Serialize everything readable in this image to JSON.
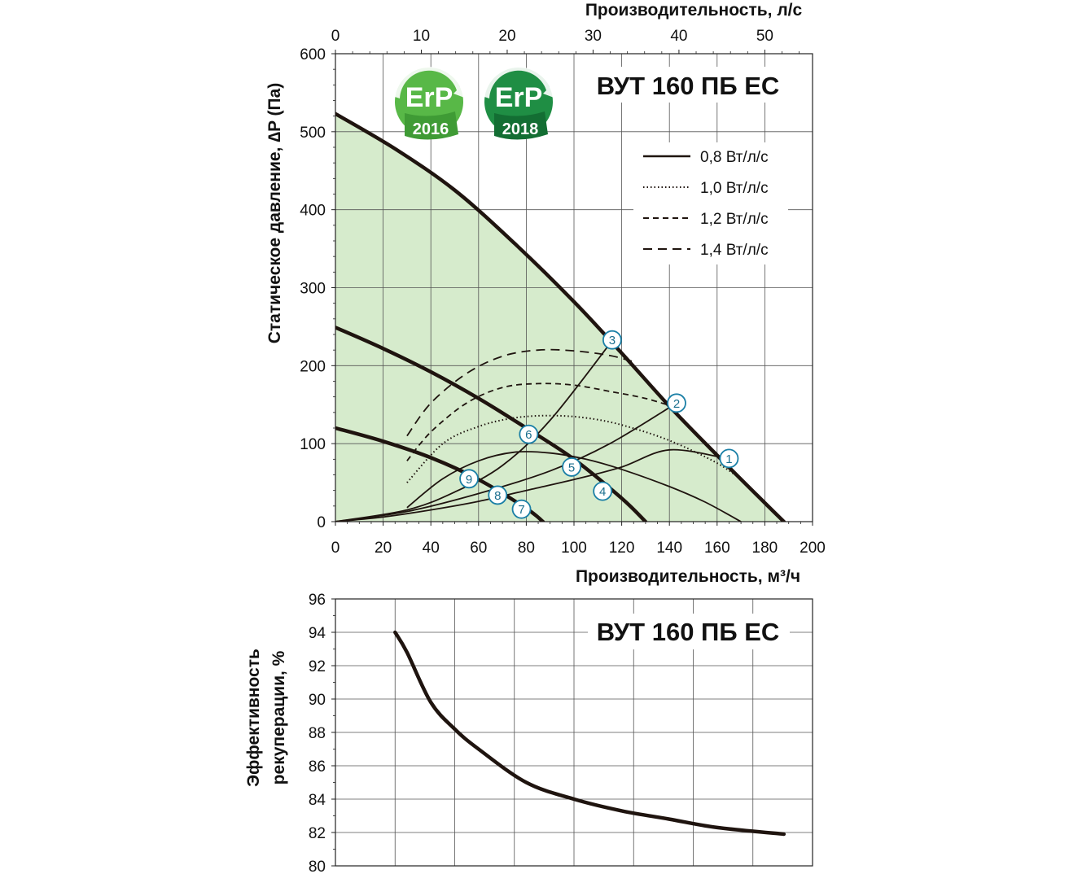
{
  "chart_data": [
    {
      "type": "line",
      "title": "ВУТ 160 ПБ ЕС",
      "xlabel": "Производительность, м³/ч",
      "x2label": "Производительность, л/с",
      "ylabel": "Статическое давление, ∆P (Па)",
      "xlim": [
        0,
        200
      ],
      "ylim": [
        0,
        600
      ],
      "x2lim": [
        0,
        55.5556
      ],
      "xticks": [
        "0",
        "20",
        "40",
        "60",
        "80",
        "100",
        "120",
        "140",
        "160",
        "180",
        "200"
      ],
      "yticks": [
        "0",
        "100",
        "200",
        "300",
        "400",
        "500",
        "600"
      ],
      "x2ticks": [
        "0",
        "10",
        "20",
        "30",
        "40",
        "50"
      ],
      "badges": [
        {
          "label": "ErP",
          "year": "2016",
          "color": "#58b847"
        },
        {
          "label": "ErP",
          "year": "2018",
          "color": "#1f8e44"
        }
      ],
      "legend": [
        {
          "label": "0,8 Вт/л/с",
          "style": "solid"
        },
        {
          "label": "1,0 Вт/л/с",
          "style": "dotted"
        },
        {
          "label": "1,2 Вт/л/с",
          "style": "dashed-short"
        },
        {
          "label": "1,4 Вт/л/с",
          "style": "dashed-long"
        }
      ],
      "fan_curves": [
        {
          "name": "max",
          "points": [
            [
              0,
              523
            ],
            [
              25,
              478
            ],
            [
              50,
              425
            ],
            [
              75,
              357
            ],
            [
              100,
              282
            ],
            [
              120,
              216
            ],
            [
              140,
              148
            ],
            [
              160,
              85
            ],
            [
              180,
              24
            ],
            [
              188,
              0
            ]
          ]
        },
        {
          "name": "mid",
          "points": [
            [
              0,
              249
            ],
            [
              20,
              222
            ],
            [
              40,
              192
            ],
            [
              60,
              158
            ],
            [
              80,
              120
            ],
            [
              100,
              80
            ],
            [
              120,
              30
            ],
            [
              130,
              0
            ]
          ]
        },
        {
          "name": "low",
          "points": [
            [
              0,
              120
            ],
            [
              20,
              103
            ],
            [
              40,
              82
            ],
            [
              60,
              54
            ],
            [
              80,
              17
            ],
            [
              87,
              0
            ]
          ]
        }
      ],
      "power_curves": [
        {
          "style": "solid",
          "points": [
            [
              30,
              18
            ],
            [
              45,
              55
            ],
            [
              60,
              78
            ],
            [
              75,
              89
            ],
            [
              90,
              88
            ],
            [
              105,
              80
            ],
            [
              120,
              67
            ],
            [
              140,
              45
            ],
            [
              155,
              25
            ],
            [
              170,
              0
            ]
          ]
        },
        {
          "style": "dotted",
          "points": [
            [
              30,
              50
            ],
            [
              45,
              100
            ],
            [
              60,
              122
            ],
            [
              75,
              133
            ],
            [
              90,
              136
            ],
            [
              105,
              133
            ],
            [
              120,
              124
            ],
            [
              140,
              104
            ],
            [
              160,
              75
            ],
            [
              172,
              50
            ]
          ]
        },
        {
          "style": "dashed-short",
          "points": [
            [
              30,
              78
            ],
            [
              40,
              115
            ],
            [
              55,
              152
            ],
            [
              70,
              172
            ],
            [
              85,
              177
            ],
            [
              100,
              175
            ],
            [
              115,
              167
            ],
            [
              130,
              158
            ],
            [
              143,
              146
            ]
          ]
        },
        {
          "style": "dashed-long",
          "points": [
            [
              30,
              110
            ],
            [
              40,
              152
            ],
            [
              55,
              190
            ],
            [
              70,
              212
            ],
            [
              85,
              220
            ],
            [
              100,
              219
            ],
            [
              115,
              213
            ],
            [
              125,
              205
            ]
          ]
        }
      ],
      "system_curves": [
        {
          "points": [
            [
              0,
              0
            ],
            [
              20,
              6
            ],
            [
              40,
              15
            ],
            [
              60,
              26
            ],
            [
              80,
              40
            ],
            [
              100,
              54
            ],
            [
              120,
              70
            ],
            [
              140,
              92
            ],
            [
              164,
              81
            ]
          ]
        },
        {
          "points": [
            [
              0,
              0
            ],
            [
              30,
              13
            ],
            [
              60,
              36
            ],
            [
              90,
              65
            ],
            [
              115,
              100
            ],
            [
              143,
              152
            ]
          ]
        },
        {
          "points": [
            [
              0,
              0
            ],
            [
              30,
              15
            ],
            [
              50,
              38
            ],
            [
              70,
              72
            ],
            [
              90,
              130
            ],
            [
              116,
              232
            ]
          ]
        }
      ],
      "markers": [
        {
          "label": "1",
          "x": 165,
          "y": 81
        },
        {
          "label": "2",
          "x": 143,
          "y": 152
        },
        {
          "label": "3",
          "x": 116,
          "y": 233
        },
        {
          "label": "4",
          "x": 112,
          "y": 39
        },
        {
          "label": "5",
          "x": 99,
          "y": 70
        },
        {
          "label": "6",
          "x": 81,
          "y": 112
        },
        {
          "label": "7",
          "x": 78,
          "y": 16
        },
        {
          "label": "8",
          "x": 68,
          "y": 34
        },
        {
          "label": "9",
          "x": 56,
          "y": 55
        }
      ]
    },
    {
      "type": "line",
      "title": "ВУТ 160 ПБ ЕС",
      "ylabel_line1": "Эффективность",
      "ylabel_line2": "рекуперации, %",
      "xlim": [
        0,
        200
      ],
      "ylim": [
        80,
        96
      ],
      "yticks": [
        "80",
        "82",
        "84",
        "86",
        "88",
        "90",
        "92",
        "94",
        "96"
      ],
      "series": [
        {
          "name": "efficiency",
          "points": [
            [
              25,
              94
            ],
            [
              30,
              92.8
            ],
            [
              40,
              89.8
            ],
            [
              50,
              88.2
            ],
            [
              60,
              87.0
            ],
            [
              80,
              85.0
            ],
            [
              100,
              84.0
            ],
            [
              120,
              83.3
            ],
            [
              140,
              82.8
            ],
            [
              160,
              82.3
            ],
            [
              188,
              81.9
            ]
          ]
        }
      ]
    }
  ]
}
